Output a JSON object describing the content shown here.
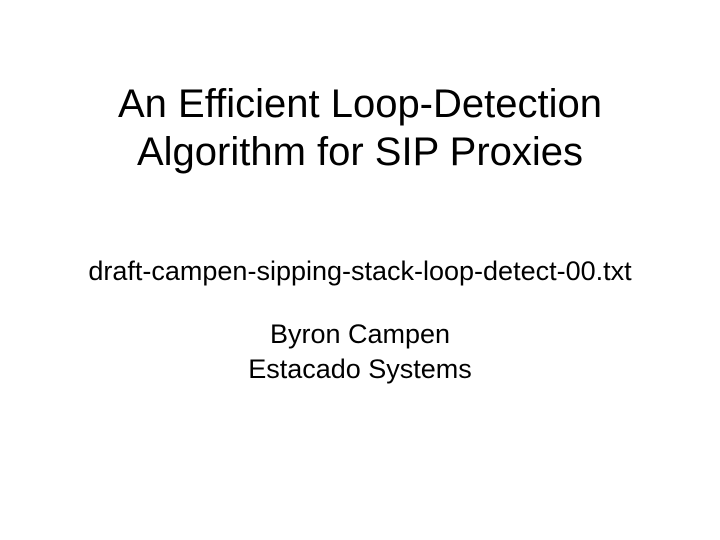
{
  "slide": {
    "title_line1": "An Efficient Loop-Detection",
    "title_line2": "Algorithm for SIP Proxies",
    "subtitle": "draft-campen-sipping-stack-loop-detect-00.txt",
    "author_name": "Byron Campen",
    "author_org": "Estacado Systems",
    "background_color": "#ffffff",
    "text_color": "#000000",
    "title_fontsize": 40,
    "body_fontsize": 27,
    "font_family": "Arial"
  }
}
